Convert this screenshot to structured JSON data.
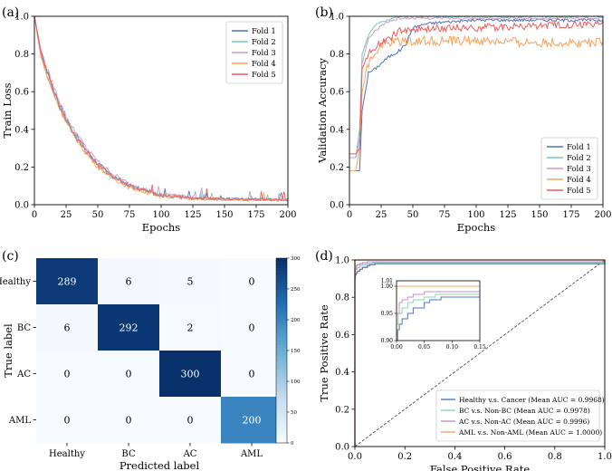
{
  "figure": {
    "colors": {
      "fold1": "#4c72b0",
      "fold2": "#76c9b4",
      "fold3": "#c99cc9",
      "fold4": "#fba15a",
      "fold5": "#f05a5a",
      "healthy": "#5470c6",
      "bc": "#8fd1b9",
      "ac": "#c48fd1",
      "aml": "#f4a460",
      "cm_low": "#f7fbff",
      "cm_high": "#08306b"
    }
  },
  "chart_data": [
    {
      "id": "a",
      "panel_label": "(a)",
      "type": "line",
      "title": "",
      "xlabel": "Epochs",
      "ylabel": "Train Loss",
      "xlim": [
        0,
        200
      ],
      "ylim": [
        0,
        1.0
      ],
      "xticks": [
        "0",
        "25",
        "50",
        "75",
        "100",
        "125",
        "150",
        "175",
        "200"
      ],
      "yticks": [
        "0.0",
        "0.2",
        "0.4",
        "0.6",
        "0.8",
        "1.0"
      ],
      "legend_position": "top-right",
      "curve_model": {
        "form": "exponential decay to plateau",
        "start": 1.0,
        "plateau": 0.025,
        "tau_epochs": 30
      },
      "series": [
        {
          "name": "Fold 1",
          "x": [
            0,
            5,
            10,
            15,
            20,
            25,
            30,
            40,
            50,
            60,
            75,
            100,
            125,
            150,
            175,
            200
          ],
          "values": [
            1.0,
            0.82,
            0.71,
            0.62,
            0.53,
            0.46,
            0.4,
            0.3,
            0.22,
            0.16,
            0.1,
            0.05,
            0.035,
            0.03,
            0.03,
            0.025
          ]
        },
        {
          "name": "Fold 2",
          "x": [
            0,
            5,
            10,
            15,
            20,
            25,
            30,
            40,
            50,
            60,
            75,
            100,
            125,
            150,
            175,
            200
          ],
          "values": [
            1.0,
            0.8,
            0.69,
            0.6,
            0.52,
            0.45,
            0.39,
            0.29,
            0.21,
            0.15,
            0.1,
            0.05,
            0.035,
            0.03,
            0.028,
            0.025
          ]
        },
        {
          "name": "Fold 3",
          "x": [
            0,
            5,
            10,
            15,
            20,
            25,
            30,
            40,
            50,
            60,
            75,
            100,
            125,
            150,
            175,
            200
          ],
          "values": [
            1.0,
            0.83,
            0.72,
            0.63,
            0.55,
            0.47,
            0.41,
            0.31,
            0.23,
            0.17,
            0.11,
            0.055,
            0.04,
            0.03,
            0.03,
            0.025
          ]
        },
        {
          "name": "Fold 4",
          "x": [
            0,
            5,
            10,
            15,
            20,
            25,
            30,
            40,
            50,
            60,
            75,
            100,
            125,
            150,
            175,
            200
          ],
          "values": [
            1.0,
            0.79,
            0.68,
            0.59,
            0.51,
            0.44,
            0.38,
            0.28,
            0.2,
            0.15,
            0.09,
            0.045,
            0.03,
            0.028,
            0.025,
            0.02
          ]
        },
        {
          "name": "Fold 5",
          "x": [
            0,
            5,
            10,
            15,
            20,
            25,
            30,
            40,
            50,
            60,
            75,
            100,
            125,
            150,
            175,
            200
          ],
          "values": [
            1.0,
            0.81,
            0.7,
            0.61,
            0.52,
            0.45,
            0.39,
            0.29,
            0.21,
            0.16,
            0.1,
            0.05,
            0.035,
            0.03,
            0.028,
            0.025
          ]
        }
      ]
    },
    {
      "id": "b",
      "panel_label": "(b)",
      "type": "line",
      "title": "",
      "xlabel": "Epochs",
      "ylabel": "Validation Accuracy",
      "xlim": [
        0,
        200
      ],
      "ylim": [
        0,
        1.0
      ],
      "xticks": [
        "0",
        "25",
        "50",
        "75",
        "100",
        "125",
        "150",
        "175",
        "200"
      ],
      "yticks": [
        "0.0",
        "0.2",
        "0.4",
        "0.6",
        "0.8",
        "1.0"
      ],
      "legend_position": "bottom-right",
      "series": [
        {
          "name": "Fold 1",
          "x": [
            0,
            2,
            5,
            8,
            10,
            15,
            20,
            25,
            30,
            40,
            45,
            50,
            60,
            75,
            100,
            150,
            200
          ],
          "values": [
            0.18,
            0.18,
            0.18,
            0.18,
            0.5,
            0.7,
            0.72,
            0.75,
            0.78,
            0.82,
            0.86,
            0.94,
            0.96,
            0.97,
            0.98,
            0.98,
            0.98
          ]
        },
        {
          "name": "Fold 2",
          "x": [
            0,
            2,
            5,
            8,
            10,
            15,
            20,
            25,
            30,
            40,
            45,
            50,
            60,
            75,
            100,
            150,
            200
          ],
          "values": [
            0.25,
            0.25,
            0.25,
            0.4,
            0.8,
            0.9,
            0.95,
            0.97,
            0.98,
            1.0,
            1.0,
            1.0,
            1.0,
            1.0,
            1.0,
            1.0,
            1.0
          ]
        },
        {
          "name": "Fold 3",
          "x": [
            0,
            2,
            5,
            8,
            10,
            15,
            20,
            25,
            30,
            40,
            45,
            50,
            60,
            75,
            100,
            150,
            200
          ],
          "values": [
            0.25,
            0.25,
            0.25,
            0.35,
            0.75,
            0.88,
            0.92,
            0.95,
            0.97,
            0.99,
            0.99,
            0.99,
            0.99,
            0.99,
            0.99,
            0.99,
            0.99
          ]
        },
        {
          "name": "Fold 4",
          "x": [
            0,
            2,
            5,
            8,
            10,
            15,
            20,
            25,
            30,
            40,
            45,
            50,
            60,
            75,
            100,
            150,
            200
          ],
          "values": [
            0.18,
            0.18,
            0.18,
            0.3,
            0.6,
            0.75,
            0.8,
            0.85,
            0.86,
            0.87,
            0.87,
            0.87,
            0.87,
            0.87,
            0.87,
            0.86,
            0.86
          ]
        },
        {
          "name": "Fold 5",
          "x": [
            0,
            2,
            5,
            8,
            10,
            15,
            20,
            25,
            30,
            40,
            45,
            50,
            60,
            75,
            100,
            150,
            200
          ],
          "values": [
            0.27,
            0.27,
            0.27,
            0.3,
            0.72,
            0.8,
            0.84,
            0.86,
            0.88,
            0.92,
            0.93,
            0.93,
            0.93,
            0.94,
            0.94,
            0.95,
            0.96
          ]
        }
      ]
    },
    {
      "id": "c",
      "panel_label": "(c)",
      "type": "heatmap",
      "title": "",
      "xlabel": "Predicted label",
      "ylabel": "True label",
      "x_categories": [
        "Healthy",
        "BC",
        "AC",
        "AML"
      ],
      "y_categories": [
        "Healthy",
        "BC",
        "AC",
        "AML"
      ],
      "matrix": [
        [
          289,
          6,
          5,
          0
        ],
        [
          6,
          292,
          2,
          0
        ],
        [
          0,
          0,
          300,
          0
        ],
        [
          0,
          0,
          0,
          200
        ]
      ],
      "colorbar_range": [
        0,
        300
      ],
      "colorbar_ticks": [
        "0",
        "50",
        "100",
        "150",
        "200",
        "250",
        "300"
      ]
    },
    {
      "id": "d",
      "panel_label": "(d)",
      "type": "line",
      "title": "",
      "xlabel": "False Positive Rate",
      "ylabel": "True Positive Rate",
      "xlim": [
        0,
        1.0
      ],
      "ylim": [
        0,
        1.0
      ],
      "xticks": [
        "0.0",
        "0.2",
        "0.4",
        "0.6",
        "0.8",
        "1.0"
      ],
      "yticks": [
        "0.0",
        "0.2",
        "0.4",
        "0.6",
        "0.8",
        "1.0"
      ],
      "legend_position": "bottom-right",
      "series": [
        {
          "name": "Healthy v.s. Cancer (Mean AUC = 0.9968)",
          "x": [
            0,
            0,
            0.002,
            0.005,
            0.01,
            0.02,
            0.03,
            0.05,
            0.06,
            0.08,
            0.15,
            1.0
          ],
          "values": [
            0,
            0.9,
            0.92,
            0.93,
            0.94,
            0.95,
            0.96,
            0.97,
            0.975,
            0.98,
            0.98,
            1.0
          ]
        },
        {
          "name": "BC v.s. Non-BC (Mean AUC = 0.9978)",
          "x": [
            0,
            0,
            0.003,
            0.01,
            0.02,
            0.03,
            0.05,
            0.07,
            0.15,
            1.0
          ],
          "values": [
            0,
            0.93,
            0.95,
            0.96,
            0.97,
            0.975,
            0.98,
            0.985,
            0.985,
            1.0
          ]
        },
        {
          "name": "AC v.s. Non-AC (Mean AUC = 0.9996)",
          "x": [
            0,
            0,
            0.005,
            0.01,
            0.02,
            0.03,
            0.05,
            0.15,
            1.0
          ],
          "values": [
            0,
            0.95,
            0.97,
            0.975,
            0.98,
            0.985,
            0.99,
            0.99,
            1.0
          ]
        },
        {
          "name": "AML v.s. Non-AML (Mean AUC = 1.0000)",
          "x": [
            0,
            0,
            1.0
          ],
          "values": [
            0,
            1.0,
            1.0
          ]
        }
      ],
      "reference_line": {
        "x": [
          0,
          1
        ],
        "values": [
          0,
          1
        ],
        "style": "dashed"
      },
      "inset": {
        "xlim": [
          0,
          0.15
        ],
        "ylim": [
          0.9,
          1.01
        ],
        "xticks": [
          "0.00",
          "0.05",
          "0.10",
          "0.15"
        ],
        "yticks": [
          "0.90",
          "0.95",
          "1.00"
        ],
        "top_label": "1.01"
      }
    }
  ]
}
